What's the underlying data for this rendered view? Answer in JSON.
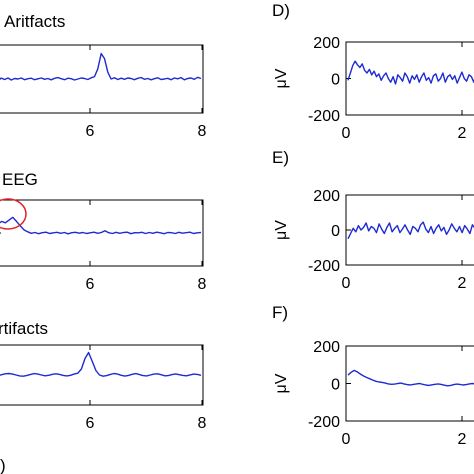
{
  "chart_data": [
    {
      "type": "line",
      "title": "Aritfacts",
      "xlabel": "",
      "ylabel": "",
      "xticks": [
        "6",
        "8"
      ],
      "xlim": [
        4,
        8
      ],
      "ylim": [
        -200,
        200
      ],
      "color": "#1f2bd1",
      "series": [
        {
          "values": [
            0,
            5,
            -3,
            6,
            -6,
            3,
            0,
            6,
            -4,
            2,
            5,
            -4,
            1,
            6,
            -2,
            3,
            -5,
            4,
            8,
            2,
            -4,
            5,
            2,
            -6,
            0,
            6,
            3,
            -3,
            7,
            14,
            60,
            150,
            120,
            40,
            0,
            7,
            -3,
            5,
            -2,
            6,
            3,
            -4,
            4,
            9,
            -2,
            3,
            -5,
            2,
            7,
            -3,
            0,
            4,
            -4,
            6,
            1,
            8,
            -5,
            3,
            6,
            -2,
            10,
            3
          ]
        }
      ]
    },
    {
      "type": "line",
      "title": "EEG",
      "xlabel": "",
      "ylabel": "",
      "xticks": [
        "6",
        "8"
      ],
      "xlim": [
        4,
        8
      ],
      "ylim": [
        -200,
        200
      ],
      "color": "#1f2bd1",
      "annotation": "red ellipse around artifact at left",
      "series": [
        {
          "values": [
            55,
            70,
            62,
            78,
            95,
            70,
            45,
            20,
            8,
            -2,
            3,
            -4,
            2,
            5,
            -3,
            1,
            4,
            -2,
            3,
            -5,
            2,
            4,
            -1,
            3,
            -3,
            1,
            5,
            -2,
            3,
            14,
            2,
            -3,
            4,
            -2,
            3,
            5,
            -4,
            2,
            1,
            4,
            -3,
            3,
            -2,
            5,
            1,
            -4,
            3,
            2,
            -3,
            4,
            -1,
            2,
            5,
            -3,
            1,
            3
          ]
        }
      ]
    },
    {
      "type": "line",
      "title": "rtifacts",
      "xlabel": "",
      "ylabel": "",
      "xticks": [
        "6",
        "8"
      ],
      "xlim": [
        4,
        8
      ],
      "ylim": [
        -200,
        200
      ],
      "color": "#1f2bd1",
      "series": [
        {
          "values": [
            -5,
            2,
            8,
            10,
            6,
            0,
            -6,
            -8,
            -3,
            4,
            9,
            6,
            0,
            -5,
            -2,
            5,
            8,
            4,
            -3,
            -6,
            -2,
            6,
            12,
            40,
            110,
            150,
            90,
            30,
            0,
            -8,
            -4,
            4,
            10,
            6,
            -2,
            -7,
            -3,
            5,
            9,
            3,
            -4,
            -6,
            0,
            6,
            8,
            2,
            -5,
            -4,
            3,
            7,
            2,
            -3,
            -5,
            1,
            6,
            4,
            -2
          ]
        }
      ]
    },
    {
      "type": "line",
      "title": "D)",
      "xlabel": "",
      "ylabel": "μV",
      "xticks": [
        "0",
        "2"
      ],
      "yticks": [
        "200",
        "0",
        "-200"
      ],
      "xlim": [
        0,
        2.6
      ],
      "ylim": [
        -200,
        200
      ],
      "color": "#1f2bd1",
      "series": [
        {
          "values": [
            -10,
            30,
            70,
            95,
            75,
            60,
            80,
            45,
            30,
            50,
            20,
            40,
            10,
            25,
            -10,
            15,
            30,
            0,
            -20,
            10,
            -30,
            20,
            5,
            -15,
            30,
            10,
            -25,
            15,
            -5,
            20,
            -20,
            10,
            30,
            -10,
            5,
            -25,
            15,
            25,
            -15,
            0,
            30,
            -20,
            10,
            20,
            -5,
            15,
            -25,
            5,
            35,
            0,
            -15,
            20,
            10,
            -20,
            25,
            5,
            -10,
            30,
            50,
            60
          ]
        }
      ]
    },
    {
      "type": "line",
      "title": "E)",
      "xlabel": "",
      "ylabel": "μV",
      "xticks": [
        "0",
        "2"
      ],
      "yticks": [
        "200",
        "0",
        "-200"
      ],
      "xlim": [
        0,
        2.6
      ],
      "ylim": [
        -200,
        200
      ],
      "color": "#1f2bd1",
      "series": [
        {
          "values": [
            -50,
            -20,
            10,
            -10,
            25,
            0,
            15,
            40,
            -5,
            20,
            10,
            -15,
            35,
            5,
            -20,
            15,
            40,
            -10,
            10,
            25,
            -15,
            5,
            30,
            0,
            -25,
            20,
            10,
            -10,
            30,
            45,
            5,
            -15,
            20,
            -20,
            10,
            30,
            -5,
            15,
            -25,
            0,
            35,
            10,
            -10,
            20,
            -15,
            25,
            5,
            -20,
            30,
            10,
            -5,
            40,
            0,
            -15,
            20
          ]
        }
      ]
    },
    {
      "type": "line",
      "title": "F)",
      "xlabel": "",
      "ylabel": "μV",
      "xticks": [
        "0",
        "2"
      ],
      "yticks": [
        "200",
        "0",
        "-200"
      ],
      "xlim": [
        0,
        2.6
      ],
      "ylim": [
        -200,
        200
      ],
      "color": "#1f2bd1",
      "series": [
        {
          "values": [
            45,
            60,
            70,
            62,
            50,
            40,
            32,
            25,
            18,
            12,
            8,
            6,
            2,
            -2,
            -4,
            -3,
            0,
            2,
            -2,
            -6,
            -8,
            -5,
            -2,
            0,
            -4,
            -8,
            -10,
            -7,
            -4,
            -2,
            -5,
            -9,
            -12,
            -10,
            -6,
            -3,
            -5,
            -8,
            -6,
            -2,
            0,
            -3,
            -6,
            -4,
            0,
            2
          ]
        }
      ]
    }
  ],
  "labels": {
    "bottom_left_fragment": ")"
  }
}
